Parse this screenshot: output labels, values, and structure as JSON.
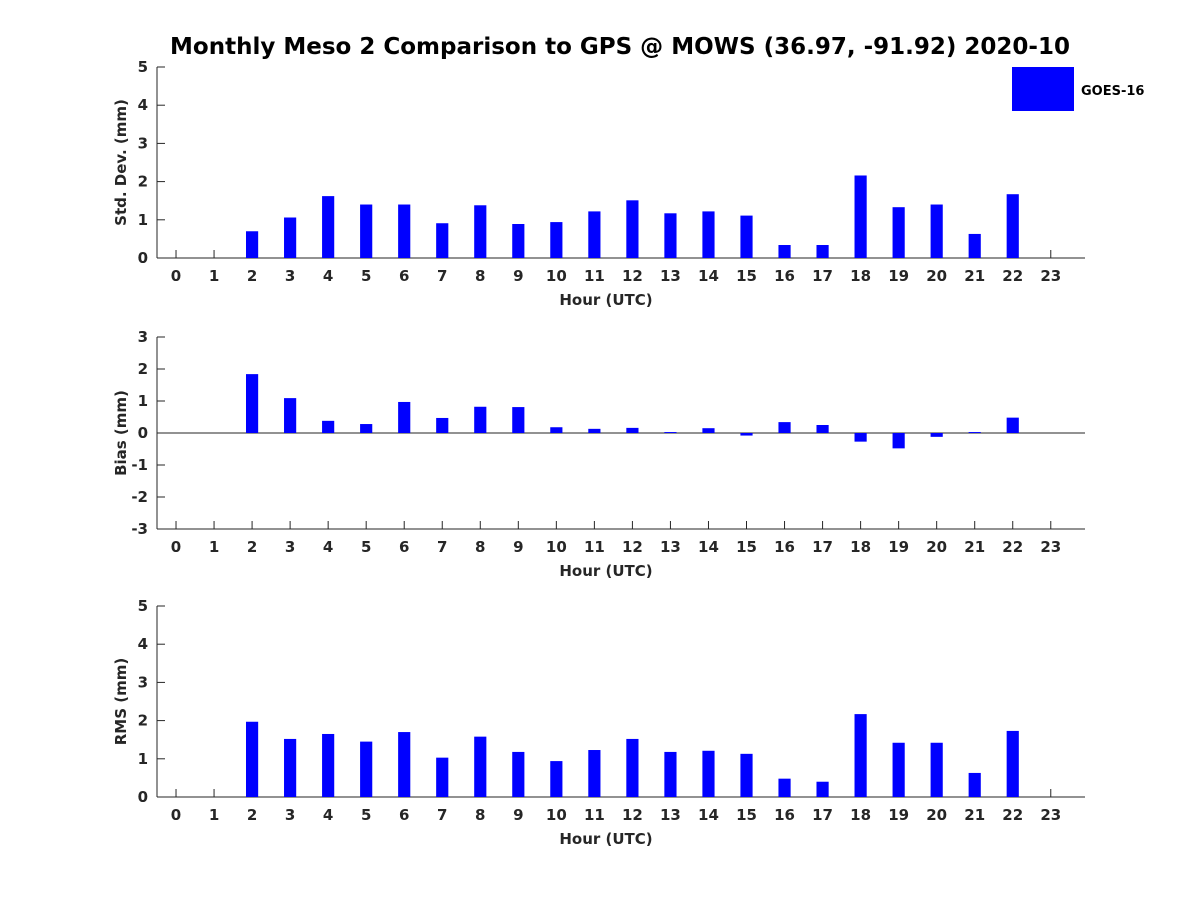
{
  "chart_data": {
    "title": "Monthly Meso 2 Comparison to GPS @ MOWS (36.97, -91.92) 2020-10",
    "legend": {
      "label": "GOES-16",
      "color": "#0000ff",
      "placement": "top-right"
    },
    "bar_color": "#0000ff",
    "panels": [
      {
        "type": "bar",
        "name": "std-dev",
        "ylabel": "Std. Dev. (mm)",
        "xlabel": "Hour (UTC)",
        "ylim": [
          0,
          5
        ],
        "yticks": [
          0,
          1,
          2,
          3,
          4,
          5
        ],
        "categories": [
          0,
          1,
          2,
          3,
          4,
          5,
          6,
          7,
          8,
          9,
          10,
          11,
          12,
          13,
          14,
          15,
          16,
          17,
          18,
          19,
          20,
          21,
          22,
          23
        ],
        "values": [
          null,
          null,
          0.7,
          1.06,
          1.62,
          1.4,
          1.4,
          0.91,
          1.38,
          0.89,
          0.94,
          1.22,
          1.51,
          1.17,
          1.22,
          1.11,
          0.34,
          0.34,
          2.16,
          1.33,
          1.4,
          0.63,
          1.67,
          null
        ]
      },
      {
        "type": "bar",
        "name": "bias",
        "ylabel": "Bias (mm)",
        "xlabel": "Hour (UTC)",
        "ylim": [
          -3,
          3
        ],
        "yticks": [
          -3,
          -2,
          -1,
          0,
          1,
          2,
          3
        ],
        "categories": [
          0,
          1,
          2,
          3,
          4,
          5,
          6,
          7,
          8,
          9,
          10,
          11,
          12,
          13,
          14,
          15,
          16,
          17,
          18,
          19,
          20,
          21,
          22,
          23
        ],
        "values": [
          null,
          null,
          1.84,
          1.09,
          0.38,
          0.28,
          0.97,
          0.47,
          0.82,
          0.81,
          0.18,
          0.13,
          0.16,
          0.03,
          0.15,
          -0.08,
          0.34,
          0.25,
          -0.27,
          -0.48,
          -0.12,
          0.03,
          0.48,
          null
        ]
      },
      {
        "type": "bar",
        "name": "rms",
        "ylabel": "RMS (mm)",
        "xlabel": "Hour (UTC)",
        "ylim": [
          0,
          5
        ],
        "yticks": [
          0,
          1,
          2,
          3,
          4,
          5
        ],
        "categories": [
          0,
          1,
          2,
          3,
          4,
          5,
          6,
          7,
          8,
          9,
          10,
          11,
          12,
          13,
          14,
          15,
          16,
          17,
          18,
          19,
          20,
          21,
          22,
          23
        ],
        "values": [
          null,
          null,
          1.97,
          1.52,
          1.65,
          1.45,
          1.7,
          1.03,
          1.58,
          1.18,
          0.94,
          1.23,
          1.52,
          1.18,
          1.21,
          1.13,
          0.48,
          0.4,
          2.17,
          1.42,
          1.42,
          0.63,
          1.73,
          null
        ]
      }
    ]
  }
}
